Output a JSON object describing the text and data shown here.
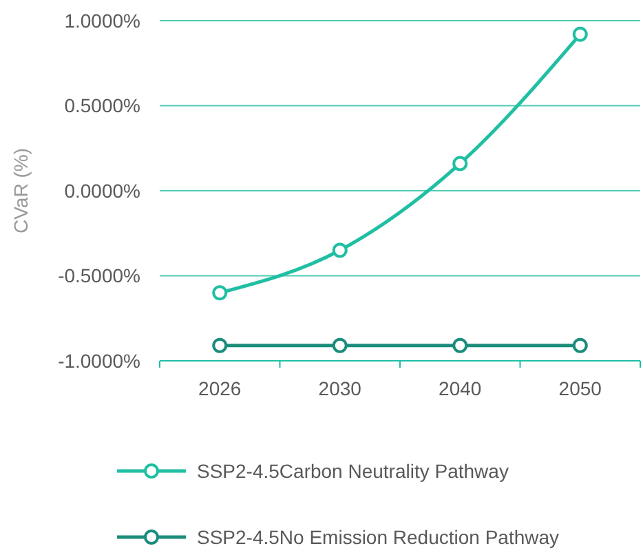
{
  "chart_data": {
    "type": "line",
    "ylabel": "CVaR (%)",
    "categories": [
      "2026",
      "2030",
      "2040",
      "2050"
    ],
    "series": [
      {
        "name": "SSP2-4.5Carbon Neutrality Pathway",
        "color": "#20bfa3",
        "values": [
          -0.6,
          -0.35,
          0.16,
          0.92
        ]
      },
      {
        "name": "SSP2-4.5No Emission Reduction Pathway",
        "color": "#1c8c7c",
        "values": [
          -0.91,
          -0.91,
          -0.91,
          -0.91
        ]
      }
    ],
    "ylim": [
      -1,
      1
    ],
    "yticks": [
      {
        "value": -1,
        "label": "-1.0000%"
      },
      {
        "value": -0.5,
        "label": "-0.5000%"
      },
      {
        "value": 0,
        "label": "0.0000%"
      },
      {
        "value": 0.5,
        "label": "0.5000%"
      },
      {
        "value": 1,
        "label": "1.0000%"
      }
    ],
    "grid": "y",
    "legend": "bottom",
    "marker": "circle",
    "line_style": "solid"
  }
}
